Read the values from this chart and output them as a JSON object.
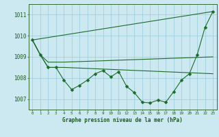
{
  "title": "Graphe pression niveau de la mer (hPa)",
  "background_color": "#cce8f0",
  "grid_color": "#99ccdd",
  "line_color": "#1a6b2a",
  "x_ticks": [
    0,
    1,
    2,
    3,
    4,
    5,
    6,
    7,
    8,
    9,
    10,
    11,
    12,
    13,
    14,
    15,
    16,
    17,
    18,
    19,
    20,
    21,
    22,
    23
  ],
  "ylim": [
    1006.5,
    1011.5
  ],
  "yticks": [
    1007,
    1008,
    1009,
    1010,
    1011
  ],
  "series_main": {
    "x": [
      0,
      1,
      2,
      3,
      4,
      5,
      6,
      7,
      8,
      9,
      10,
      11,
      12,
      13,
      14,
      15,
      16,
      17,
      18,
      19,
      20,
      21,
      22,
      23
    ],
    "y": [
      1009.8,
      1009.1,
      1008.5,
      1008.5,
      1007.9,
      1007.45,
      1007.65,
      1007.9,
      1008.2,
      1008.35,
      1008.05,
      1008.3,
      1007.6,
      1007.3,
      1006.85,
      1006.82,
      1006.95,
      1006.85,
      1007.35,
      1007.9,
      1008.2,
      1009.1,
      1010.4,
      1011.15
    ]
  },
  "series_diag": {
    "x": [
      0,
      23
    ],
    "y": [
      1009.8,
      1011.15
    ]
  },
  "series_upper": {
    "x": [
      0,
      1,
      2,
      3,
      4,
      23
    ],
    "y": [
      1009.8,
      1009.1,
      1008.75,
      1008.75,
      1008.75,
      1009.0
    ]
  },
  "series_lower": {
    "x": [
      0,
      1,
      2,
      3,
      4,
      23
    ],
    "y": [
      1009.8,
      1009.1,
      1008.5,
      1008.5,
      1008.5,
      1008.2
    ]
  }
}
